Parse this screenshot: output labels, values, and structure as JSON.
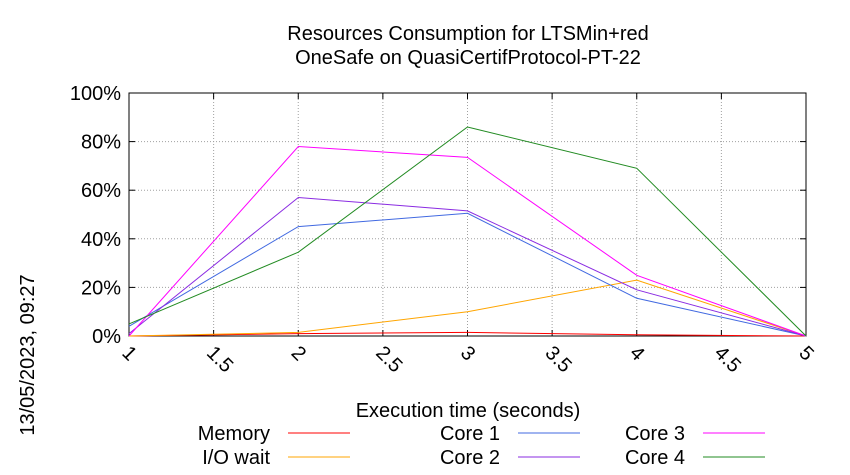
{
  "chart_data": {
    "type": "line",
    "title": [
      "Resources Consumption for LTSMin+red",
      "OneSafe on QuasiCertifProtocol-PT-22"
    ],
    "xlabel": "Execution time (seconds)",
    "ylabel": "",
    "side_label": "13/05/2023, 09:27",
    "xlim": [
      1,
      5
    ],
    "ylim": [
      0,
      100
    ],
    "x_ticks": [
      "1",
      "1.5",
      "2",
      "2.5",
      "3",
      "3.5",
      "4",
      "4.5",
      "5"
    ],
    "y_ticks": [
      "0%",
      "20%",
      "40%",
      "60%",
      "80%",
      "100%"
    ],
    "grid": true,
    "legend_position": "bottom",
    "series": [
      {
        "name": "Memory",
        "color": "#ff0000",
        "x": [
          1,
          2,
          3,
          4,
          5
        ],
        "y": [
          0,
          1,
          1.5,
          0.5,
          0
        ]
      },
      {
        "name": "I/O wait",
        "color": "#ffa500",
        "x": [
          1,
          2,
          3,
          4,
          5
        ],
        "y": [
          0,
          1.5,
          10,
          23,
          0
        ]
      },
      {
        "name": "Core 1",
        "color": "#4169e1",
        "x": [
          1,
          2,
          3,
          4,
          5
        ],
        "y": [
          4,
          45,
          50.5,
          15.5,
          0
        ]
      },
      {
        "name": "Core 2",
        "color": "#8a2be2",
        "x": [
          1,
          2,
          3,
          4,
          5
        ],
        "y": [
          1,
          57,
          51.5,
          19,
          0
        ]
      },
      {
        "name": "Core 3",
        "color": "#ff00ff",
        "x": [
          1,
          2,
          3,
          4,
          5
        ],
        "y": [
          0,
          78,
          73.5,
          25,
          0
        ]
      },
      {
        "name": "Core 4",
        "color": "#228b22",
        "x": [
          1,
          2,
          3,
          4,
          5
        ],
        "y": [
          5,
          34.5,
          86,
          69,
          0
        ]
      }
    ]
  }
}
